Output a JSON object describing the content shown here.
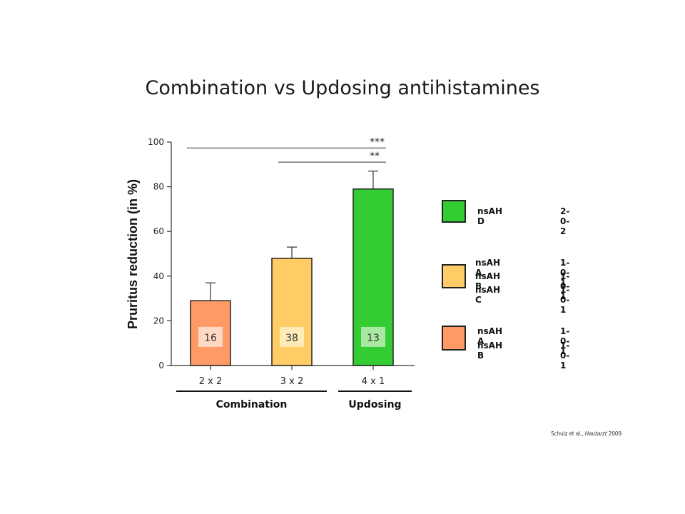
{
  "slide": {
    "title": "Combination vs Updosing antihistamines",
    "citation_authors": "Schulz et al.,",
    "citation_journal": "Hautarzt",
    "citation_year": "2009"
  },
  "chart_data": {
    "type": "bar",
    "title": "Combination vs Updosing antihistamines",
    "ylabel": "Pruritus reduction  (in %)",
    "xlabel": "",
    "ylim": [
      0,
      100
    ],
    "yticks": [
      0,
      20,
      40,
      60,
      80,
      100
    ],
    "categories": [
      "2 x 2",
      "3 x 2",
      "4 x 1"
    ],
    "values": [
      29,
      48,
      79
    ],
    "error_plus": [
      8,
      5,
      8
    ],
    "counts": [
      "16",
      "38",
      "13"
    ],
    "colors": [
      "#FF9966",
      "#FFCC66",
      "#33CC33"
    ],
    "count_box_colors": [
      "#FFD9C4",
      "#FFEBB8",
      "#A8E8A0"
    ],
    "groups": [
      {
        "label": "Combination",
        "categories": [
          0,
          1
        ]
      },
      {
        "label": "Updosing",
        "categories": [
          2
        ]
      }
    ],
    "significance": [
      {
        "from": 0,
        "to": 2,
        "label": "***",
        "y": 98
      },
      {
        "from": 1,
        "to": 2,
        "label": "**",
        "y": 91
      }
    ],
    "grid": false
  },
  "legend": [
    {
      "color": "#33CC33",
      "drugs": [
        "nsAH D"
      ],
      "doses": [
        "2-0-2"
      ]
    },
    {
      "color": "#FFCC66",
      "drugs": [
        "nsAH A",
        "nsAH B",
        "nsAH C"
      ],
      "doses": [
        "1-0-1",
        "1-0-1",
        "1-0-1"
      ]
    },
    {
      "color": "#FF9966",
      "drugs": [
        "nsAH A",
        "nsAH B"
      ],
      "doses": [
        "1-0-1",
        "1-0-1"
      ]
    }
  ]
}
